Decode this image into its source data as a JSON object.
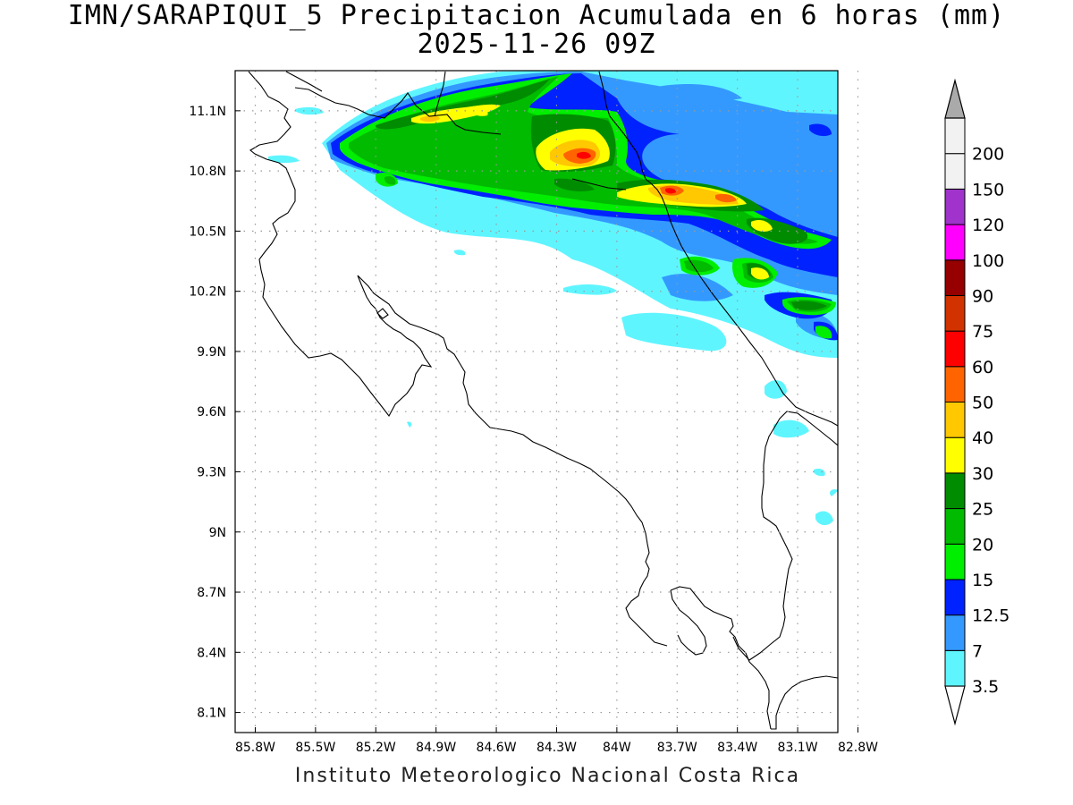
{
  "title": {
    "line1": "IMN/SARAPIQUI_5 Precipitacion Acumulada en 6 horas (mm)",
    "line2": "2025-11-26 09Z"
  },
  "footer": "Instituto Meteorologico Nacional Costa Rica",
  "map": {
    "lon_range": [
      -85.9,
      -82.9
    ],
    "lat_range": [
      8.0,
      11.3
    ],
    "lon_ticks": [
      "85.8W",
      "85.5W",
      "85.2W",
      "84.9W",
      "84.6W",
      "84.3W",
      "84W",
      "83.7W",
      "83.4W",
      "83.1W",
      "82.8W"
    ],
    "lat_ticks": [
      "11.1N",
      "10.8N",
      "10.5N",
      "10.2N",
      "9.9N",
      "9.6N",
      "9.3N",
      "9N",
      "8.7N",
      "8.4N",
      "8.1N"
    ],
    "grid": "dotted"
  },
  "legend": {
    "levels": [
      "3.5",
      "7",
      "12.5",
      "15",
      "20",
      "25",
      "30",
      "40",
      "50",
      "60",
      "75",
      "90",
      "100",
      "120",
      "150",
      "200"
    ],
    "colors": [
      "#5ff5ff",
      "#3399ff",
      "#0022ff",
      "#00ee00",
      "#00bb00",
      "#008c00",
      "#ffff00",
      "#ffc800",
      "#ff6400",
      "#ff0000",
      "#d23200",
      "#960000",
      "#ff00ff",
      "#a033cc",
      "#f2f2f2",
      "#aaaaaa"
    ]
  }
}
